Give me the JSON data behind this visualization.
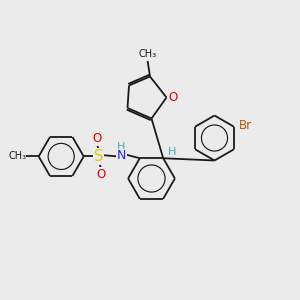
{
  "bg_color": "#ebebeb",
  "bond_color": "#1a1a1a",
  "bond_width": 1.3,
  "dbo": 0.06,
  "atom_colors": {
    "O": "#dd0000",
    "N": "#2222ee",
    "S": "#ddcc00",
    "Br": "#bb5500",
    "H": "#44aaaa",
    "C": "#1a1a1a"
  },
  "fs": 8.5
}
